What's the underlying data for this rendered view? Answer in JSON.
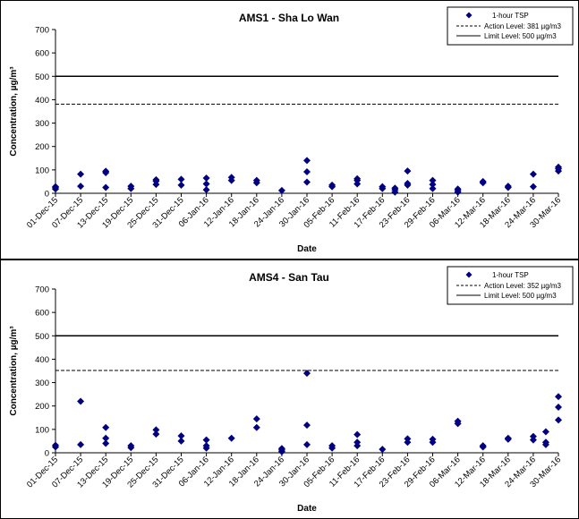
{
  "chart_data": [
    {
      "type": "scatter",
      "title": "AMS1 - Sha Lo Wan",
      "xlabel": "Date",
      "ylabel": "Concentration, µg/m³",
      "ylim": [
        0,
        700
      ],
      "yticks": [
        "0",
        "100",
        "200",
        "300",
        "400",
        "500",
        "600",
        "700"
      ],
      "xlim": [
        "2015-12-01",
        "2016-03-30"
      ],
      "xticks": [
        "01-Dec-15",
        "07-Dec-15",
        "13-Dec-15",
        "19-Dec-15",
        "25-Dec-15",
        "31-Dec-15",
        "06-Jan-16",
        "12-Jan-16",
        "18-Jan-16",
        "24-Jan-16",
        "30-Jan-16",
        "05-Feb-16",
        "11-Feb-16",
        "17-Feb-16",
        "23-Feb-16",
        "29-Feb-16",
        "06-Mar-16",
        "12-Mar-16",
        "18-Mar-16",
        "24-Mar-16",
        "30-Mar-16"
      ],
      "grid": false,
      "legend_position": "top-right",
      "series": [
        {
          "name": "1-hour TSP",
          "marker": "diamond",
          "color": "#000080",
          "points": [
            [
              "2015-12-01",
              18
            ],
            [
              "2015-12-01",
              24
            ],
            [
              "2015-12-01",
              28
            ],
            [
              "2015-12-07",
              30
            ],
            [
              "2015-12-07",
              82
            ],
            [
              "2015-12-13",
              25
            ],
            [
              "2015-12-13",
              88
            ],
            [
              "2015-12-13",
              94
            ],
            [
              "2015-12-19",
              20
            ],
            [
              "2015-12-19",
              30
            ],
            [
              "2015-12-25",
              38
            ],
            [
              "2015-12-25",
              52
            ],
            [
              "2015-12-25",
              58
            ],
            [
              "2015-12-31",
              35
            ],
            [
              "2015-12-31",
              60
            ],
            [
              "2016-01-06",
              15
            ],
            [
              "2016-01-06",
              40
            ],
            [
              "2016-01-06",
              65
            ],
            [
              "2016-01-12",
              55
            ],
            [
              "2016-01-12",
              68
            ],
            [
              "2016-01-18",
              45
            ],
            [
              "2016-01-18",
              55
            ],
            [
              "2016-01-24",
              12
            ],
            [
              "2016-01-30",
              48
            ],
            [
              "2016-01-30",
              92
            ],
            [
              "2016-01-30",
              140
            ],
            [
              "2016-02-05",
              28
            ],
            [
              "2016-02-05",
              35
            ],
            [
              "2016-02-11",
              40
            ],
            [
              "2016-02-11",
              55
            ],
            [
              "2016-02-11",
              62
            ],
            [
              "2016-02-17",
              20
            ],
            [
              "2016-02-17",
              28
            ],
            [
              "2016-02-20",
              5
            ],
            [
              "2016-02-20",
              15
            ],
            [
              "2016-02-20",
              22
            ],
            [
              "2016-02-23",
              35
            ],
            [
              "2016-02-23",
              42
            ],
            [
              "2016-02-23",
              95
            ],
            [
              "2016-02-29",
              20
            ],
            [
              "2016-02-29",
              38
            ],
            [
              "2016-02-29",
              55
            ],
            [
              "2016-03-06",
              5
            ],
            [
              "2016-03-06",
              12
            ],
            [
              "2016-03-06",
              18
            ],
            [
              "2016-03-12",
              45
            ],
            [
              "2016-03-12",
              50
            ],
            [
              "2016-03-18",
              25
            ],
            [
              "2016-03-18",
              30
            ],
            [
              "2016-03-24",
              28
            ],
            [
              "2016-03-24",
              82
            ],
            [
              "2016-03-30",
              95
            ],
            [
              "2016-03-30",
              105
            ],
            [
              "2016-03-30",
              112
            ]
          ]
        }
      ],
      "reference_lines": [
        {
          "name": "Action Level: 381 µg/m3",
          "value": 381,
          "style": "dashed"
        },
        {
          "name": "Limit Level: 500 µg/m3",
          "value": 500,
          "style": "solid"
        }
      ]
    },
    {
      "type": "scatter",
      "title": "AMS4 - San Tau",
      "xlabel": "Date",
      "ylabel": "Concentration, µg/m³",
      "ylim": [
        0,
        700
      ],
      "yticks": [
        "0",
        "100",
        "200",
        "300",
        "400",
        "500",
        "600",
        "700"
      ],
      "xlim": [
        "2015-12-01",
        "2016-03-30"
      ],
      "xticks": [
        "01-Dec-15",
        "07-Dec-15",
        "13-Dec-15",
        "19-Dec-15",
        "25-Dec-15",
        "31-Dec-15",
        "06-Jan-16",
        "12-Jan-16",
        "18-Jan-16",
        "24-Jan-16",
        "30-Jan-16",
        "05-Feb-16",
        "11-Feb-16",
        "17-Feb-16",
        "23-Feb-16",
        "29-Feb-16",
        "06-Mar-16",
        "12-Mar-16",
        "18-Mar-16",
        "24-Mar-16",
        "30-Mar-16"
      ],
      "grid": false,
      "legend_position": "top-right",
      "series": [
        {
          "name": "1-hour TSP",
          "marker": "diamond",
          "color": "#000080",
          "points": [
            [
              "2015-12-01",
              25
            ],
            [
              "2015-12-01",
              32
            ],
            [
              "2015-12-07",
              35
            ],
            [
              "2015-12-07",
              220
            ],
            [
              "2015-12-13",
              40
            ],
            [
              "2015-12-13",
              62
            ],
            [
              "2015-12-13",
              108
            ],
            [
              "2015-12-19",
              22
            ],
            [
              "2015-12-19",
              30
            ],
            [
              "2015-12-25",
              80
            ],
            [
              "2015-12-25",
              98
            ],
            [
              "2015-12-31",
              50
            ],
            [
              "2015-12-31",
              72
            ],
            [
              "2016-01-06",
              20
            ],
            [
              "2016-01-06",
              30
            ],
            [
              "2016-01-06",
              55
            ],
            [
              "2016-01-12",
              62
            ],
            [
              "2016-01-18",
              108
            ],
            [
              "2016-01-18",
              145
            ],
            [
              "2016-01-24",
              5
            ],
            [
              "2016-01-24",
              12
            ],
            [
              "2016-01-24",
              18
            ],
            [
              "2016-01-30",
              35
            ],
            [
              "2016-01-30",
              118
            ],
            [
              "2016-01-30",
              340
            ],
            [
              "2016-02-05",
              20
            ],
            [
              "2016-02-05",
              30
            ],
            [
              "2016-02-11",
              30
            ],
            [
              "2016-02-11",
              45
            ],
            [
              "2016-02-11",
              78
            ],
            [
              "2016-02-17",
              15
            ],
            [
              "2016-02-23",
              45
            ],
            [
              "2016-02-23",
              60
            ],
            [
              "2016-02-29",
              45
            ],
            [
              "2016-02-29",
              58
            ],
            [
              "2016-03-06",
              125
            ],
            [
              "2016-03-06",
              135
            ],
            [
              "2016-03-12",
              25
            ],
            [
              "2016-03-12",
              30
            ],
            [
              "2016-03-18",
              58
            ],
            [
              "2016-03-18",
              62
            ],
            [
              "2016-03-24",
              55
            ],
            [
              "2016-03-24",
              70
            ],
            [
              "2016-03-27",
              35
            ],
            [
              "2016-03-27",
              45
            ],
            [
              "2016-03-27",
              90
            ],
            [
              "2016-03-30",
              140
            ],
            [
              "2016-03-30",
              195
            ],
            [
              "2016-03-30",
              240
            ]
          ]
        }
      ],
      "reference_lines": [
        {
          "name": "Action Level: 352 µg/m3",
          "value": 352,
          "style": "dashed"
        },
        {
          "name": "Limit Level: 500 µg/m3",
          "value": 500,
          "style": "solid"
        }
      ]
    }
  ]
}
